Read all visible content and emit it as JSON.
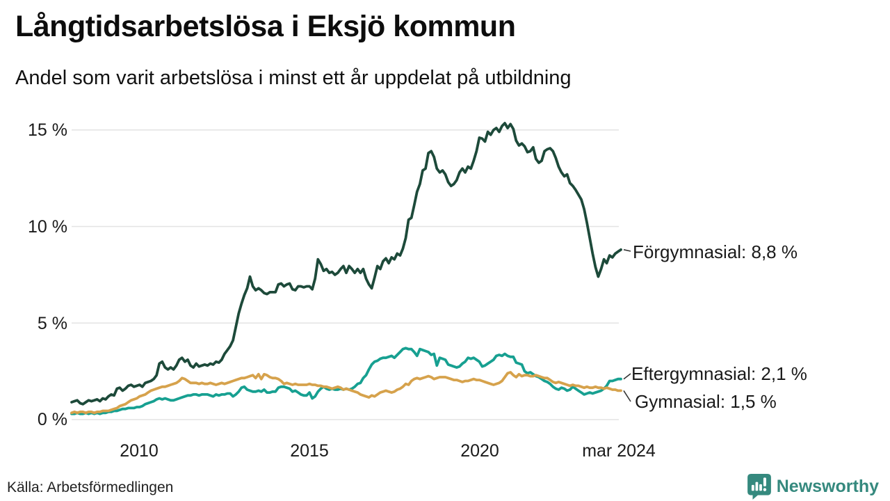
{
  "header": {
    "title": "Långtidsarbetslösa i Eksjö kommun",
    "subtitle": "Andel som varit arbetslösa i minst ett år uppdelat på utbildning"
  },
  "footer": {
    "source": "Källa: Arbetsförmedlingen",
    "brand": "Newsworthy",
    "brand_icon": "newsworthy-pin-barchart-icon",
    "brand_color": "#35897e"
  },
  "colors": {
    "forgymnasial": "#1d4a3a",
    "eftergymnasial": "#17a091",
    "gymnasial": "#d6a24c",
    "gridline": "#e3e3e3",
    "connector": "#333333",
    "background": "#ffffff"
  },
  "chart_data": {
    "type": "line",
    "unit": "%",
    "frequency": "monthly",
    "x_start": "2008-01",
    "x_end": "2024-03",
    "grid": true,
    "legend_position": "right-end-labels",
    "ylim": [
      0,
      15.5
    ],
    "y_ticks": [
      {
        "label": "15 %",
        "value": 15
      },
      {
        "label": "10 %",
        "value": 10
      },
      {
        "label": "5 %",
        "value": 5
      },
      {
        "label": "0 %",
        "value": 0
      }
    ],
    "x_ticks": [
      {
        "label": "2010",
        "month_index": 24
      },
      {
        "label": "2015",
        "month_index": 84
      },
      {
        "label": "2020",
        "month_index": 144
      },
      {
        "label": "mar 2024",
        "month_index": 194
      }
    ],
    "end_labels": [
      {
        "text": "Förgymnasial: 8,8 %",
        "value": 8.8
      },
      {
        "text": "Eftergymnasial: 2,1 %",
        "value": 2.1
      },
      {
        "text": "Gymnasial: 1,5 %",
        "value": 1.5
      }
    ],
    "series": [
      {
        "name": "Förgymnasial",
        "color": "#1d4a3a",
        "values": [
          0.9,
          0.95,
          1.0,
          0.85,
          0.8,
          0.9,
          1.0,
          0.95,
          1.0,
          1.05,
          0.95,
          1.1,
          1.05,
          1.2,
          1.3,
          1.25,
          1.6,
          1.65,
          1.5,
          1.6,
          1.75,
          1.8,
          1.7,
          1.75,
          1.8,
          1.7,
          1.9,
          1.95,
          2.0,
          2.1,
          2.3,
          2.9,
          3.0,
          2.7,
          2.6,
          2.7,
          2.6,
          2.8,
          3.1,
          3.2,
          3.0,
          3.1,
          2.8,
          2.7,
          2.9,
          2.75,
          2.8,
          2.85,
          2.8,
          2.9,
          2.85,
          3.0,
          2.95,
          3.1,
          3.4,
          3.6,
          3.8,
          4.1,
          4.8,
          5.5,
          6.0,
          6.45,
          6.8,
          7.4,
          6.9,
          6.7,
          6.8,
          6.7,
          6.55,
          6.5,
          6.6,
          6.6,
          6.6,
          7.0,
          7.05,
          6.9,
          7.0,
          7.05,
          6.75,
          6.7,
          6.9,
          6.9,
          6.85,
          6.9,
          6.9,
          6.75,
          7.3,
          8.3,
          8.05,
          7.7,
          7.8,
          7.6,
          7.65,
          7.5,
          7.6,
          7.8,
          7.95,
          7.6,
          7.95,
          7.8,
          7.6,
          7.8,
          7.6,
          7.8,
          7.3,
          7.0,
          6.8,
          7.35,
          7.95,
          7.8,
          8.2,
          8.35,
          8.1,
          8.4,
          8.3,
          8.6,
          8.5,
          8.85,
          9.4,
          10.35,
          10.45,
          11.1,
          11.8,
          12.2,
          12.9,
          13.0,
          13.8,
          13.9,
          13.6,
          13.0,
          12.8,
          12.9,
          12.7,
          12.3,
          12.1,
          12.2,
          12.4,
          12.8,
          13.0,
          12.8,
          13.1,
          13.0,
          13.4,
          13.9,
          14.6,
          14.55,
          14.4,
          14.9,
          14.75,
          15.0,
          15.1,
          14.9,
          15.2,
          15.35,
          15.1,
          15.3,
          15.05,
          14.45,
          14.2,
          14.3,
          14.15,
          13.85,
          13.9,
          14.1,
          13.5,
          13.3,
          13.4,
          13.9,
          14.0,
          14.05,
          13.9,
          13.55,
          13.1,
          12.8,
          12.6,
          12.7,
          12.25,
          12.1,
          11.9,
          11.65,
          11.4,
          10.9,
          10.2,
          9.4,
          8.6,
          7.9,
          7.4,
          7.8,
          8.3,
          8.1,
          8.5,
          8.4,
          8.6,
          8.7,
          8.8
        ]
      },
      {
        "name": "Eftergymnasial",
        "color": "#17a091",
        "values": [
          0.3,
          0.3,
          0.35,
          0.3,
          0.3,
          0.35,
          0.3,
          0.35,
          0.3,
          0.35,
          0.3,
          0.35,
          0.35,
          0.4,
          0.4,
          0.45,
          0.45,
          0.5,
          0.55,
          0.55,
          0.6,
          0.6,
          0.6,
          0.65,
          0.65,
          0.7,
          0.8,
          0.85,
          0.9,
          0.95,
          1.05,
          1.1,
          1.05,
          1.1,
          1.05,
          1.0,
          1.0,
          1.05,
          1.1,
          1.15,
          1.2,
          1.25,
          1.25,
          1.3,
          1.3,
          1.25,
          1.3,
          1.3,
          1.3,
          1.25,
          1.2,
          1.3,
          1.25,
          1.3,
          1.3,
          1.35,
          1.35,
          1.2,
          1.3,
          1.45,
          1.65,
          1.7,
          1.55,
          1.5,
          1.45,
          1.45,
          1.5,
          1.45,
          1.55,
          1.4,
          1.4,
          1.45,
          1.45,
          1.65,
          1.7,
          1.7,
          1.65,
          1.6,
          1.45,
          1.5,
          1.4,
          1.3,
          1.25,
          1.25,
          1.4,
          1.1,
          1.2,
          1.45,
          1.6,
          1.7,
          1.6,
          1.55,
          1.6,
          1.55,
          1.55,
          1.6,
          1.55,
          1.6,
          1.55,
          1.6,
          1.7,
          1.85,
          1.9,
          2.15,
          2.3,
          2.6,
          2.85,
          3.0,
          3.05,
          3.15,
          3.2,
          3.2,
          3.25,
          3.3,
          3.2,
          3.35,
          3.5,
          3.65,
          3.7,
          3.65,
          3.65,
          3.5,
          3.3,
          3.65,
          3.6,
          3.55,
          3.5,
          3.35,
          3.4,
          2.8,
          3.2,
          3.15,
          3.1,
          2.85,
          2.8,
          2.75,
          2.7,
          2.75,
          2.9,
          3.0,
          3.2,
          3.15,
          3.2,
          3.1,
          3.0,
          2.75,
          2.8,
          2.9,
          3.0,
          3.1,
          3.3,
          3.35,
          3.3,
          3.4,
          3.3,
          3.25,
          3.25,
          2.95,
          2.9,
          2.85,
          2.5,
          2.4,
          2.45,
          2.35,
          2.25,
          2.2,
          2.1,
          2.0,
          1.95,
          1.85,
          1.7,
          1.6,
          1.55,
          1.65,
          1.6,
          1.5,
          1.55,
          1.7,
          1.6,
          1.5,
          1.4,
          1.3,
          1.35,
          1.4,
          1.35,
          1.4,
          1.45,
          1.5,
          1.6,
          1.75,
          2.0,
          2.0,
          2.05,
          2.1,
          2.1
        ]
      },
      {
        "name": "Gymnasial",
        "color": "#d6a24c",
        "values": [
          0.35,
          0.4,
          0.35,
          0.4,
          0.4,
          0.35,
          0.4,
          0.4,
          0.35,
          0.4,
          0.4,
          0.45,
          0.45,
          0.45,
          0.5,
          0.55,
          0.6,
          0.7,
          0.75,
          0.8,
          0.9,
          1.0,
          1.05,
          1.1,
          1.2,
          1.25,
          1.3,
          1.4,
          1.5,
          1.55,
          1.6,
          1.65,
          1.7,
          1.7,
          1.75,
          1.8,
          1.85,
          1.9,
          2.0,
          2.15,
          2.1,
          2.0,
          1.9,
          1.9,
          1.9,
          1.85,
          1.9,
          1.85,
          1.85,
          1.9,
          1.85,
          1.8,
          1.85,
          1.9,
          1.85,
          1.9,
          1.95,
          2.0,
          2.05,
          2.1,
          2.15,
          2.15,
          2.2,
          2.25,
          2.3,
          2.15,
          2.35,
          2.1,
          2.35,
          2.3,
          2.2,
          2.15,
          2.15,
          2.1,
          2.0,
          1.85,
          1.9,
          1.85,
          1.8,
          1.85,
          1.8,
          1.8,
          1.8,
          1.8,
          1.85,
          1.8,
          1.8,
          1.75,
          1.75,
          1.7,
          1.7,
          1.65,
          1.6,
          1.65,
          1.7,
          1.65,
          1.55,
          1.6,
          1.55,
          1.5,
          1.45,
          1.4,
          1.3,
          1.25,
          1.2,
          1.15,
          1.25,
          1.2,
          1.3,
          1.4,
          1.45,
          1.5,
          1.45,
          1.4,
          1.45,
          1.55,
          1.6,
          1.7,
          1.85,
          1.8,
          2.0,
          2.1,
          2.15,
          2.1,
          2.15,
          2.2,
          2.25,
          2.2,
          2.1,
          2.15,
          2.2,
          2.2,
          2.2,
          2.15,
          2.1,
          2.05,
          2.05,
          2.0,
          1.95,
          2.0,
          2.0,
          2.05,
          2.1,
          2.05,
          2.05,
          2.0,
          1.95,
          1.9,
          1.85,
          1.8,
          1.85,
          1.9,
          2.0,
          2.2,
          2.4,
          2.45,
          2.3,
          2.2,
          2.35,
          2.25,
          2.3,
          2.3,
          2.25,
          2.25,
          2.3,
          2.25,
          2.2,
          2.15,
          2.15,
          2.05,
          1.95,
          1.9,
          1.95,
          1.9,
          1.85,
          1.8,
          1.75,
          1.8,
          1.75,
          1.75,
          1.7,
          1.65,
          1.7,
          1.65,
          1.65,
          1.7,
          1.65,
          1.65,
          1.6,
          1.65,
          1.6,
          1.55,
          1.55,
          1.5,
          1.5
        ]
      }
    ]
  }
}
